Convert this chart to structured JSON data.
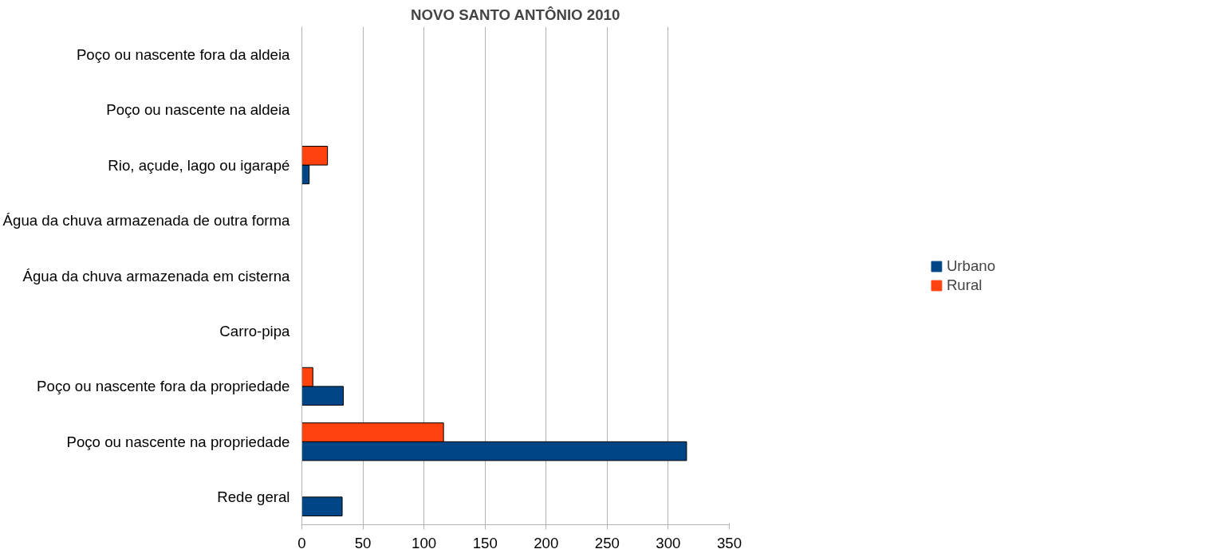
{
  "chart_data": {
    "type": "bar",
    "orientation": "horizontal",
    "title": "NOVO SANTO ANTÔNIO 2010",
    "categories": [
      "Poço ou nascente fora da aldeia",
      "Poço ou nascente na aldeia",
      "Rio, açude, lago ou igarapé",
      "Água da chuva armazenada de outra forma",
      "Água da chuva armazenada em cisterna",
      "Carro-pipa",
      "Poço ou nascente fora da propriedade",
      "Poço ou nascente na propriedade",
      "Rede geral"
    ],
    "series": [
      {
        "name": "Urbano",
        "color": "#004586",
        "values": [
          0,
          0,
          6,
          0,
          0,
          0,
          34,
          315,
          33
        ]
      },
      {
        "name": "Rural",
        "color": "#ff420e",
        "values": [
          0,
          0,
          21,
          0,
          0,
          0,
          9,
          116,
          0
        ]
      }
    ],
    "xlim": [
      0,
      350
    ],
    "xticks": [
      0,
      50,
      100,
      150,
      200,
      250,
      300,
      350
    ],
    "grid": "x",
    "legend": "right"
  }
}
